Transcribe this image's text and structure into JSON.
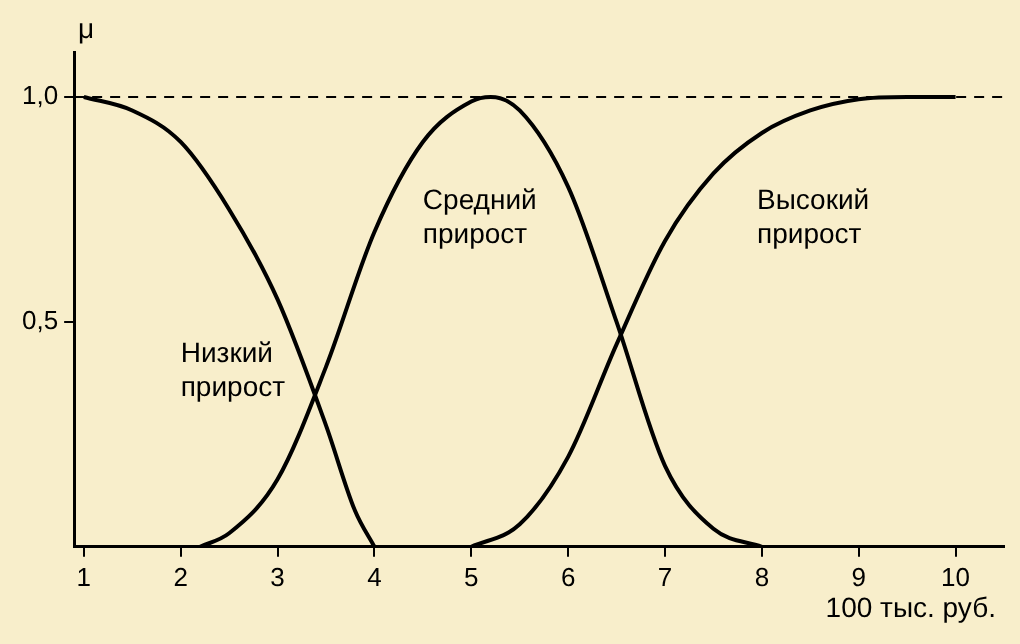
{
  "chart_data": {
    "type": "line",
    "xlabel": "100 тыс. руб.",
    "ylabel": "μ",
    "xlim": [
      0.9,
      10.5
    ],
    "ylim": [
      0,
      1.1
    ],
    "xticks": [
      1,
      2,
      3,
      4,
      5,
      6,
      7,
      8,
      9,
      10
    ],
    "yticks": [
      {
        "value": 0.5,
        "label": "0,5"
      },
      {
        "value": 1,
        "label": "1,0"
      }
    ],
    "series": [
      {
        "name": "Низкий прирост",
        "color": "#000000",
        "x": [
          1,
          1.5,
          2,
          2.5,
          3,
          3.5,
          3.8,
          4
        ],
        "values": [
          1,
          0.97,
          0.9,
          0.75,
          0.55,
          0.27,
          0.08,
          0
        ]
      },
      {
        "name": "Средний прирост",
        "color": "#000000",
        "x": [
          2.2,
          2.5,
          3,
          3.5,
          4,
          4.5,
          5,
          5.2,
          5.5,
          6,
          6.5,
          7,
          7.5,
          8
        ],
        "values": [
          0,
          0.03,
          0.15,
          0.4,
          0.7,
          0.9,
          0.99,
          1,
          0.97,
          0.8,
          0.5,
          0.18,
          0.04,
          0
        ]
      },
      {
        "name": "Высокий прирост",
        "color": "#000000",
        "x": [
          5,
          5.5,
          6,
          6.5,
          7,
          7.5,
          8,
          8.5,
          9,
          9.5,
          10
        ],
        "values": [
          0,
          0.05,
          0.2,
          0.45,
          0.68,
          0.83,
          0.92,
          0.97,
          0.995,
          1,
          1
        ]
      }
    ],
    "ref_lines": [
      {
        "axis": "y",
        "value": 1,
        "line_style": "dashed"
      }
    ],
    "grid": false,
    "legend": false,
    "marker": "none",
    "line_style": "solid"
  }
}
